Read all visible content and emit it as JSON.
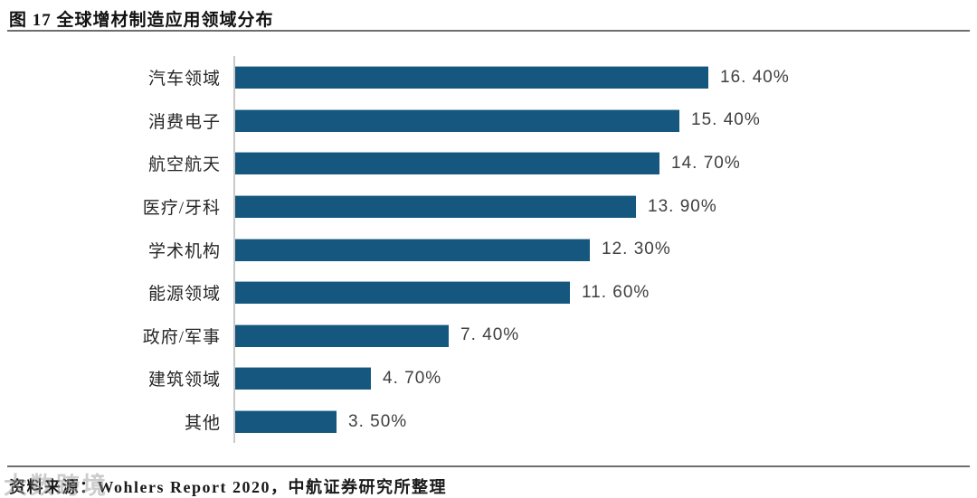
{
  "title": "图 17 全球增材制造应用领域分布",
  "source_note": "资料来源：Wohlers Report 2020，中航证券研究所整理",
  "watermark": "大数跨境",
  "colors": {
    "bar": "#15577E",
    "axis_line": "#C9C9C9",
    "value_text": "#3F3F3F",
    "divider": "#6E6E6E"
  },
  "chart_data": {
    "type": "bar",
    "orientation": "horizontal",
    "title": "图 17 全球增材制造应用领域分布",
    "categories": [
      "汽车领域",
      "消费电子",
      "航空航天",
      "医疗/牙科",
      "学术机构",
      "能源领域",
      "政府/军事",
      "建筑领域",
      "其他"
    ],
    "values": [
      16.4,
      15.4,
      14.7,
      13.9,
      12.3,
      11.6,
      7.4,
      4.7,
      3.5
    ],
    "value_labels": [
      "16. 40%",
      "15. 40%",
      "14. 70%",
      "13. 90%",
      "12. 30%",
      "11. 60%",
      "7. 40%",
      "4. 70%",
      "3. 50%"
    ],
    "xlabel": "",
    "ylabel": "",
    "xlim": [
      0,
      18
    ],
    "grid": false,
    "legend": "none",
    "data_labels": "outside-end",
    "source": "Wohlers Report 2020，中航证券研究所整理"
  }
}
